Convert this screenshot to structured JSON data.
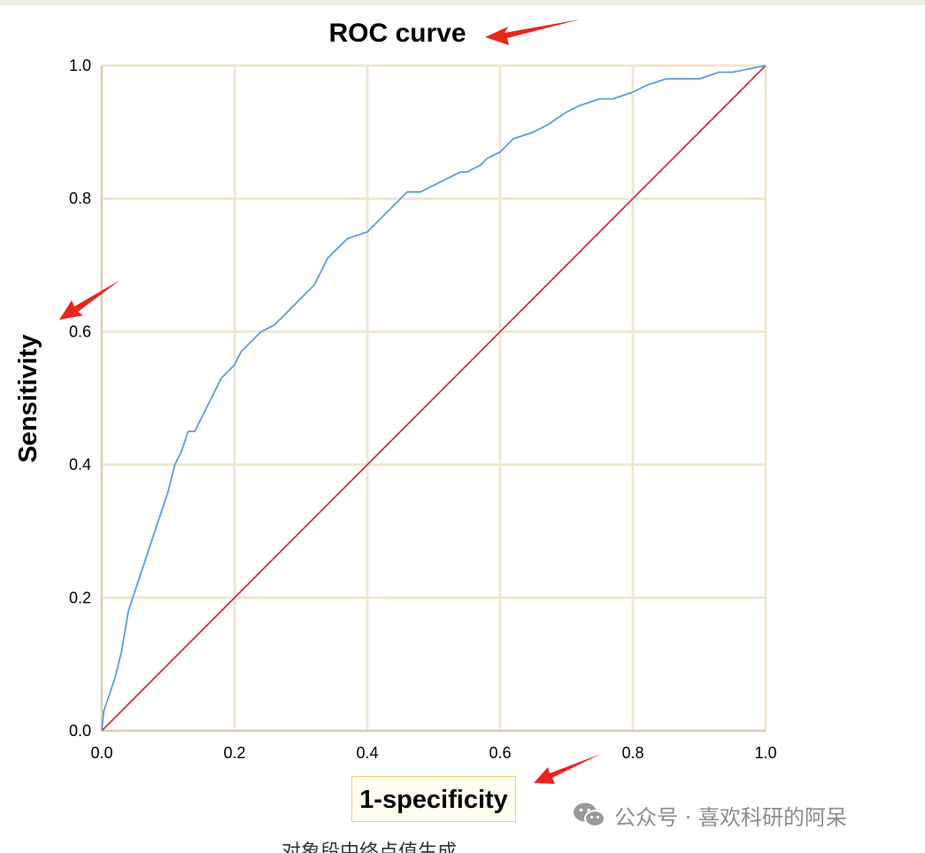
{
  "chart_data": {
    "type": "line",
    "title": "ROC curve",
    "xlabel": "1-specificity",
    "ylabel": "Sensitivity",
    "xlim": [
      0,
      1
    ],
    "ylim": [
      0,
      1
    ],
    "grid": true,
    "x_ticks": [
      "0.0",
      "0.2",
      "0.4",
      "0.6",
      "0.8",
      "1.0"
    ],
    "y_ticks": [
      "0.0",
      "0.2",
      "0.4",
      "0.6",
      "0.8",
      "1.0"
    ],
    "series": [
      {
        "color": "#5b9be6",
        "x": [
          0.0,
          0.003,
          0.01,
          0.02,
          0.03,
          0.04,
          0.05,
          0.06,
          0.07,
          0.08,
          0.09,
          0.1,
          0.11,
          0.12,
          0.13,
          0.14,
          0.15,
          0.16,
          0.17,
          0.18,
          0.2,
          0.21,
          0.22,
          0.23,
          0.24,
          0.26,
          0.28,
          0.3,
          0.32,
          0.33,
          0.34,
          0.35,
          0.37,
          0.4,
          0.42,
          0.44,
          0.45,
          0.46,
          0.48,
          0.5,
          0.52,
          0.54,
          0.55,
          0.57,
          0.58,
          0.6,
          0.62,
          0.65,
          0.67,
          0.7,
          0.72,
          0.75,
          0.77,
          0.8,
          0.82,
          0.85,
          0.87,
          0.9,
          0.93,
          0.95,
          1.0
        ],
        "y": [
          0.0,
          0.03,
          0.05,
          0.08,
          0.12,
          0.18,
          0.21,
          0.24,
          0.27,
          0.3,
          0.33,
          0.36,
          0.4,
          0.42,
          0.45,
          0.45,
          0.47,
          0.49,
          0.51,
          0.53,
          0.55,
          0.57,
          0.58,
          0.59,
          0.6,
          0.61,
          0.63,
          0.65,
          0.67,
          0.69,
          0.71,
          0.72,
          0.74,
          0.75,
          0.77,
          0.79,
          0.8,
          0.81,
          0.81,
          0.82,
          0.83,
          0.84,
          0.84,
          0.85,
          0.86,
          0.87,
          0.89,
          0.9,
          0.91,
          0.93,
          0.94,
          0.95,
          0.95,
          0.96,
          0.97,
          0.98,
          0.98,
          0.98,
          0.99,
          0.99,
          1.0
        ]
      },
      {
        "color": "#c8334f",
        "x": [
          0.0,
          1.0
        ],
        "y": [
          0.0,
          1.0
        ]
      }
    ],
    "annotations": [
      "red-arrow",
      "red-arrow",
      "red-arrow"
    ]
  },
  "watermark": {
    "icon": "wechat-icon",
    "text": "公众号 · 喜欢科研的阿呆"
  },
  "caption": "对象段中终点值生成",
  "colors": {
    "grid": "#efe7d2",
    "reference_line": "#c8334f",
    "roc_curve": "#5b9be6",
    "arrow": "#e8261c"
  }
}
